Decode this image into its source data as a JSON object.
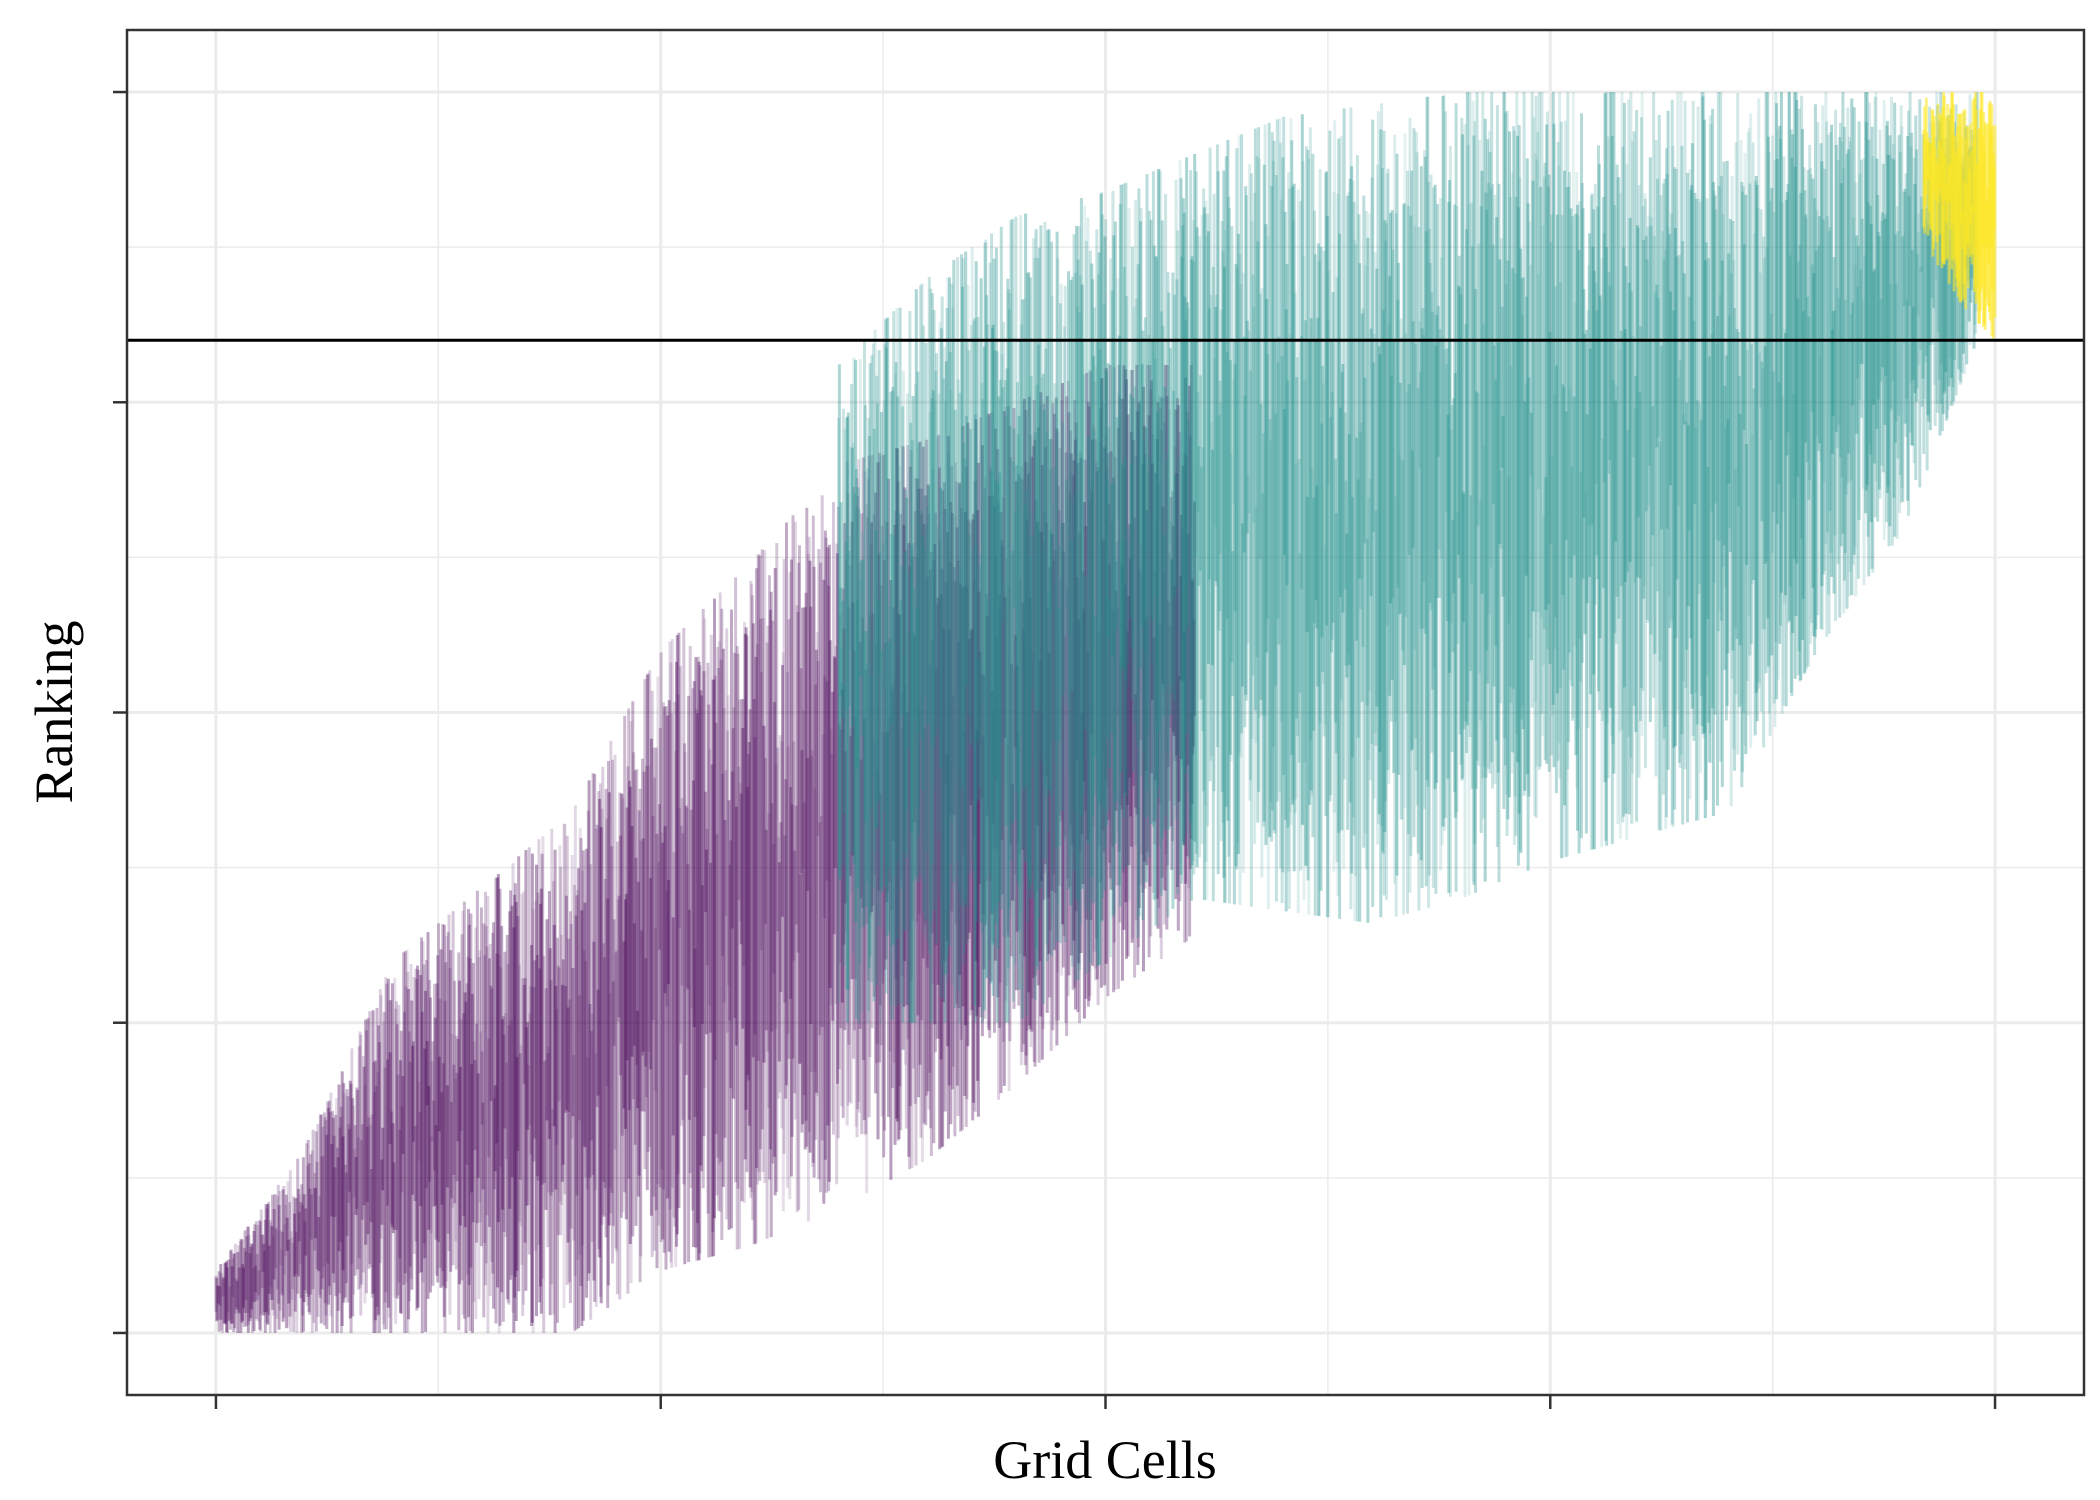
{
  "chart_data": {
    "type": "errorbar",
    "title": "",
    "xlabel": "Grid Cells",
    "ylabel": "Ranking",
    "xlim": [
      -0.05,
      1.05
    ],
    "ylim": [
      -0.05,
      1.05
    ],
    "x_ticks": [
      0,
      0.25,
      0.5,
      0.75,
      1.0
    ],
    "y_ticks": [
      0,
      0.25,
      0.5,
      0.75,
      1.0
    ],
    "tick_labels_visible": false,
    "grid": true,
    "reference_line": {
      "orientation": "horizontal",
      "y": 0.8,
      "color": "#000000"
    },
    "colors": {
      "low": "#440154",
      "mid": "#21908C",
      "high": "#FDE725",
      "grid": "#EBEBEB",
      "frame": "#333333"
    },
    "series": [
      {
        "color_group": "low",
        "x_range": [
          0.0,
          0.55
        ],
        "envelope": [
          {
            "x": 0.0,
            "lo": 0.0,
            "hi": 0.05
          },
          {
            "x": 0.05,
            "lo": 0.0,
            "hi": 0.15
          },
          {
            "x": 0.1,
            "lo": 0.0,
            "hi": 0.3
          },
          {
            "x": 0.15,
            "lo": 0.0,
            "hi": 0.36
          },
          {
            "x": 0.2,
            "lo": 0.0,
            "hi": 0.42
          },
          {
            "x": 0.25,
            "lo": 0.05,
            "hi": 0.55
          },
          {
            "x": 0.3,
            "lo": 0.07,
            "hi": 0.62
          },
          {
            "x": 0.35,
            "lo": 0.1,
            "hi": 0.7
          },
          {
            "x": 0.4,
            "lo": 0.14,
            "hi": 0.72
          },
          {
            "x": 0.45,
            "lo": 0.2,
            "hi": 0.75
          },
          {
            "x": 0.5,
            "lo": 0.27,
            "hi": 0.78
          },
          {
            "x": 0.55,
            "lo": 0.32,
            "hi": 0.78
          }
        ]
      },
      {
        "color_group": "mid",
        "x_range": [
          0.35,
          0.99
        ],
        "envelope": [
          {
            "x": 0.35,
            "lo": 0.25,
            "hi": 0.78
          },
          {
            "x": 0.4,
            "lo": 0.25,
            "hi": 0.85
          },
          {
            "x": 0.45,
            "lo": 0.25,
            "hi": 0.9
          },
          {
            "x": 0.5,
            "lo": 0.3,
            "hi": 0.92
          },
          {
            "x": 0.55,
            "lo": 0.35,
            "hi": 0.95
          },
          {
            "x": 0.6,
            "lo": 0.34,
            "hi": 0.98
          },
          {
            "x": 0.65,
            "lo": 0.33,
            "hi": 0.99
          },
          {
            "x": 0.7,
            "lo": 0.35,
            "hi": 1.0
          },
          {
            "x": 0.75,
            "lo": 0.38,
            "hi": 1.0
          },
          {
            "x": 0.8,
            "lo": 0.4,
            "hi": 1.0
          },
          {
            "x": 0.85,
            "lo": 0.42,
            "hi": 1.0
          },
          {
            "x": 0.9,
            "lo": 0.55,
            "hi": 1.0
          },
          {
            "x": 0.95,
            "lo": 0.65,
            "hi": 1.0
          },
          {
            "x": 0.99,
            "lo": 0.8,
            "hi": 1.0
          }
        ]
      },
      {
        "color_group": "high",
        "x_range": [
          0.96,
          1.0
        ],
        "envelope": [
          {
            "x": 0.96,
            "lo": 0.88,
            "hi": 1.0
          },
          {
            "x": 0.98,
            "lo": 0.83,
            "hi": 1.0
          },
          {
            "x": 1.0,
            "lo": 0.8,
            "hi": 1.0
          }
        ]
      }
    ]
  }
}
